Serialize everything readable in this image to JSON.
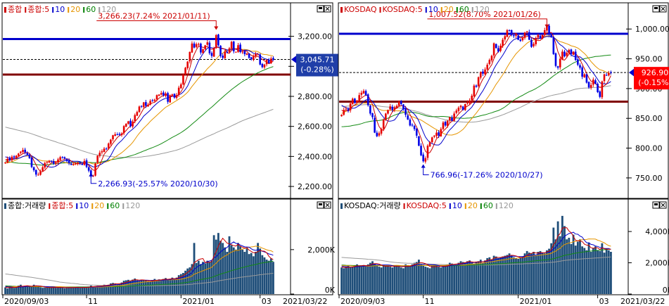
{
  "panels": [
    {
      "id": "kospi",
      "legend_price": [
        {
          "text": "종합",
          "color": "#cc0000",
          "marker": "#cc0000"
        },
        {
          "text": "종합:5",
          "color": "#cc0000"
        },
        {
          "text": "10",
          "color": "#0000cc"
        },
        {
          "text": "20",
          "color": "#e69500"
        },
        {
          "text": "60",
          "color": "#008000"
        },
        {
          "text": "120",
          "color": "#999999"
        }
      ],
      "legend_volume": [
        {
          "text": "종합:거래량",
          "color": "#000000",
          "marker": "#1f4e79"
        },
        {
          "text": "종합:5",
          "color": "#cc0000"
        },
        {
          "text": "10",
          "color": "#0000cc"
        },
        {
          "text": "20",
          "color": "#e69500"
        },
        {
          "text": "60",
          "color": "#008000"
        },
        {
          "text": "120",
          "color": "#999999"
        }
      ],
      "last_value": "3,045.71",
      "last_change": "(-0.28%)",
      "high_annotation": "3,266.23(7.24% 2021/01/11)",
      "low_annotation": "2,266.93(-25.57% 2020/10/30)",
      "y_ticks": [
        "3,200.00",
        "3,000.00",
        "2,800.00",
        "2,600.00",
        "2,400.00",
        "2,200.00"
      ],
      "vol_ticks": [
        "2,000K",
        "0K"
      ],
      "x_ticks": [
        "2020/09/03",
        "11",
        "2021/01",
        "03"
      ]
    },
    {
      "id": "kosdaq",
      "legend_price": [
        {
          "text": "KOSDAQ",
          "color": "#cc0000",
          "marker": "#cc0000"
        },
        {
          "text": "KOSDAQ:5",
          "color": "#cc0000"
        },
        {
          "text": "10",
          "color": "#0000cc"
        },
        {
          "text": "20",
          "color": "#e69500"
        },
        {
          "text": "60",
          "color": "#008000"
        },
        {
          "text": "120",
          "color": "#999999"
        }
      ],
      "legend_volume": [
        {
          "text": "KOSDAQ:거래량",
          "color": "#000000",
          "marker": "#1f4e79"
        },
        {
          "text": "KOSDAQ:5",
          "color": "#cc0000"
        },
        {
          "text": "10",
          "color": "#0000cc"
        },
        {
          "text": "20",
          "color": "#e69500"
        },
        {
          "text": "60",
          "color": "#008000"
        },
        {
          "text": "120",
          "color": "#999999"
        }
      ],
      "last_value": "926.90",
      "last_change": "(-0.15%)",
      "high_annotation": "1,007.52(8.70% 2021/01/26)",
      "low_annotation": "766.96(-17.26% 2020/10/27)",
      "y_ticks": [
        "1,000.00",
        "950.00",
        "900.00",
        "850.00",
        "800.00",
        "750.00"
      ],
      "vol_ticks": [
        "4,000K",
        "2,000K",
        "0K"
      ],
      "x_ticks": [
        "2020/09/03",
        "11",
        "2021/01",
        "03"
      ]
    }
  ],
  "end_date": "2021/03/22",
  "colors": {
    "up": "#e60000",
    "down": "#0000e6",
    "resistance": "#0000cc",
    "support": "#800000",
    "volume_bar": "#1f4e79"
  },
  "chart_data": [
    {
      "type": "candlestick",
      "title": "종합",
      "ylim": [
        2130,
        3320
      ],
      "date_range": [
        "2020/09/03",
        "2021/03/22"
      ],
      "annotations": {
        "high": {
          "value": 3266.23,
          "change_pct": 7.24,
          "date": "2021/01/11"
        },
        "low": {
          "value": 2266.93,
          "change_pct": -25.57,
          "date": "2020/10/30"
        },
        "last": {
          "value": 3045.71,
          "change_pct": -0.28
        }
      },
      "horizontal_lines": [
        {
          "value": 3182,
          "color": "blue"
        },
        {
          "value": 2945,
          "color": "darkred"
        }
      ],
      "close": [
        2360,
        2384,
        2376,
        2398,
        2392,
        2404,
        2419,
        2432,
        2443,
        2427,
        2412,
        2389,
        2330,
        2308,
        2279,
        2278,
        2300,
        2328,
        2356,
        2363,
        2371,
        2365,
        2352,
        2357,
        2380,
        2395,
        2391,
        2386,
        2370,
        2356,
        2344,
        2347,
        2353,
        2358,
        2357,
        2344,
        2370,
        2330,
        2305,
        2270,
        2272,
        2353,
        2405,
        2425,
        2434,
        2452,
        2448,
        2486,
        2512,
        2541,
        2547,
        2546,
        2544,
        2553,
        2602,
        2617,
        2634,
        2601,
        2633,
        2675,
        2696,
        2732,
        2731,
        2760,
        2737,
        2745,
        2770,
        2772,
        2778,
        2808,
        2812,
        2822,
        2806,
        2820,
        2764,
        2806,
        2813,
        2792,
        2808,
        2858,
        2880,
        2944,
        2990,
        3031,
        3096,
        3152,
        3125,
        3148,
        3149,
        3092,
        3114,
        3140,
        3160,
        3087,
        3069,
        3122,
        3208,
        3140,
        3069,
        3057,
        3097,
        3091,
        3120,
        3163,
        3100,
        3096,
        3141,
        3095,
        3099,
        3081,
        3085,
        3056,
        3047,
        3065,
        3083,
        3079,
        3012,
        2995,
        3012,
        3044,
        3021,
        3052,
        3046
      ]
    },
    {
      "type": "bar",
      "title": "종합:거래량",
      "ylim": [
        0,
        3800
      ],
      "unit": "K",
      "values": [
        300,
        250,
        320,
        350,
        280,
        320,
        380,
        420,
        360,
        340,
        380,
        320,
        350,
        420,
        380,
        330,
        300,
        280,
        290,
        300,
        310,
        300,
        290,
        280,
        320,
        300,
        280,
        260,
        270,
        330,
        300,
        280,
        310,
        300,
        280,
        300,
        310,
        320,
        330,
        380,
        310,
        350,
        370,
        360,
        380,
        420,
        400,
        420,
        480,
        500,
        480,
        430,
        450,
        520,
        600,
        620,
        640,
        590,
        650,
        700,
        620,
        580,
        640,
        620,
        600,
        580,
        560,
        620,
        680,
        640,
        660,
        620,
        680,
        720,
        640,
        690,
        740,
        680,
        740,
        850,
        900,
        950,
        1050,
        1150,
        1200,
        1350,
        2300,
        1400,
        1500,
        1350,
        1450,
        1380,
        1500,
        1450,
        1500,
        2650,
        2450,
        2750,
        2400,
        2300,
        2100,
        1900,
        2600,
        2200,
        2100,
        2000,
        2300,
        2150,
        2000,
        1900,
        2050,
        1800,
        1850,
        1700,
        1900,
        2300,
        2050,
        1750,
        1650,
        1550,
        1500,
        1600,
        1450
      ]
    },
    {
      "type": "candlestick",
      "title": "KOSDAQ",
      "ylim": [
        718,
        1018
      ],
      "date_range": [
        "2020/09/03",
        "2021/03/22"
      ],
      "annotations": {
        "high": {
          "value": 1007.52,
          "change_pct": 8.7,
          "date": "2021/01/26"
        },
        "low": {
          "value": 766.96,
          "change_pct": -17.26,
          "date": "2020/10/27"
        },
        "last": {
          "value": 926.9,
          "change_pct": -0.15
        }
      },
      "horizontal_lines": [
        {
          "value": 992,
          "color": "blue"
        },
        {
          "value": 878,
          "color": "darkred"
        }
      ],
      "close": [
        856,
        864,
        866,
        863,
        875,
        883,
        876,
        880,
        889,
        893,
        896,
        889,
        872,
        858,
        852,
        826,
        820,
        825,
        832,
        848,
        858,
        864,
        870,
        864,
        868,
        871,
        878,
        874,
        866,
        856,
        848,
        838,
        838,
        832,
        821,
        804,
        788,
        778,
        783,
        804,
        810,
        818,
        821,
        826,
        821,
        832,
        843,
        838,
        846,
        852,
        846,
        858,
        863,
        868,
        871,
        864,
        874,
        876,
        880,
        888,
        905,
        903,
        919,
        928,
        925,
        932,
        940,
        948,
        955,
        976,
        968,
        962,
        972,
        982,
        988,
        998,
        997,
        990,
        988,
        990,
        982,
        980,
        986,
        994,
        996,
        982,
        970,
        975,
        985,
        990,
        984,
        990,
        998,
        1005,
        992,
        986,
        958,
        938,
        935,
        950,
        962,
        954,
        960,
        965,
        958,
        962,
        948,
        940,
        935,
        920,
        924,
        910,
        902,
        906,
        915,
        908,
        894,
        886,
        912,
        924,
        922,
        926,
        926
      ]
    },
    {
      "type": "bar",
      "title": "KOSDAQ:거래량",
      "ylim": [
        0,
        5400
      ],
      "unit": "K",
      "values": [
        1700,
        1650,
        1750,
        1800,
        1700,
        1750,
        1850,
        1900,
        1800,
        1750,
        1850,
        1800,
        1900,
        2000,
        2100,
        1950,
        1800,
        1750,
        1700,
        1800,
        1850,
        1800,
        1750,
        1700,
        1800,
        1850,
        1750,
        1700,
        1650,
        1900,
        1850,
        1800,
        1900,
        2000,
        2050,
        2200,
        1900,
        1800,
        1750,
        1700,
        1650,
        1800,
        1850,
        1800,
        1750,
        1700,
        1800,
        1850,
        1900,
        2000,
        1950,
        1850,
        1900,
        2000,
        2100,
        2050,
        2000,
        2100,
        2150,
        2000,
        1950,
        2050,
        2100,
        2200,
        2000,
        2150,
        2300,
        2350,
        2200,
        2450,
        2400,
        2300,
        2350,
        2400,
        2450,
        2500,
        2600,
        2450,
        2350,
        2300,
        2250,
        2350,
        2400,
        2600,
        2750,
        2650,
        2600,
        2700,
        2450,
        2700,
        2750,
        2650,
        2600,
        2800,
        2900,
        3250,
        4250,
        3500,
        4650,
        3700,
        5000,
        4350,
        3500,
        3600,
        3200,
        3800,
        3100,
        3350,
        3500,
        3050,
        2950,
        2800,
        3300,
        2700,
        2950,
        3050,
        2800,
        2750,
        3250,
        2650,
        2900,
        2800,
        2700
      ]
    }
  ]
}
